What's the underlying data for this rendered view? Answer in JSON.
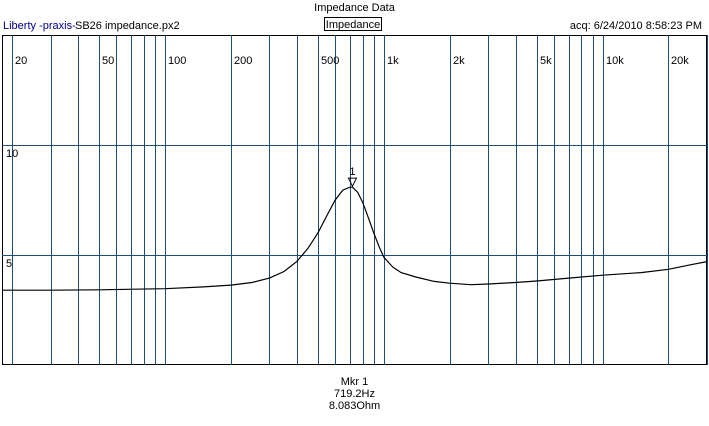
{
  "header": {
    "title": "Impedance Data",
    "brand": "Liberty -praxis-",
    "filename": "SB26 impedance.px2",
    "measurement_label": "Impedance",
    "acquired": "acq: 6/24/2010 8:58:23 PM"
  },
  "marker": {
    "number": "1",
    "title": "Mkr 1",
    "frequency": "719.2Hz",
    "value": "8.083Ohm"
  },
  "chart_data": {
    "type": "line",
    "title": "Impedance Data",
    "xlabel": "",
    "ylabel": "",
    "xscale": "log",
    "xlim": [
      18,
      30000
    ],
    "ylim": [
      0,
      15
    ],
    "grid": true,
    "xticks": [
      {
        "value": 20,
        "label": "20"
      },
      {
        "value": 50,
        "label": "50"
      },
      {
        "value": 100,
        "label": "100"
      },
      {
        "value": 200,
        "label": "200"
      },
      {
        "value": 500,
        "label": "500"
      },
      {
        "value": 1000,
        "label": "1k"
      },
      {
        "value": 2000,
        "label": "2k"
      },
      {
        "value": 5000,
        "label": "5k"
      },
      {
        "value": 10000,
        "label": "10k"
      },
      {
        "value": 20000,
        "label": "20k"
      }
    ],
    "yticks": [
      {
        "value": 5,
        "label": "5"
      },
      {
        "value": 10,
        "label": "10"
      }
    ],
    "series": [
      {
        "color": "#000000",
        "x": [
          18,
          30,
          50,
          100,
          150,
          200,
          250,
          300,
          350,
          400,
          450,
          500,
          550,
          600,
          650,
          700,
          719.2,
          760,
          800,
          850,
          900,
          950,
          1000,
          1100,
          1200,
          1400,
          1700,
          2000,
          2500,
          3000,
          4000,
          5000,
          7000,
          10000,
          15000,
          20000,
          25000,
          30000
        ],
        "y": [
          3.4,
          3.4,
          3.42,
          3.47,
          3.55,
          3.63,
          3.75,
          3.95,
          4.25,
          4.7,
          5.3,
          6.0,
          6.8,
          7.5,
          7.95,
          8.08,
          8.08,
          7.85,
          7.4,
          6.7,
          6.0,
          5.4,
          4.9,
          4.45,
          4.2,
          4.0,
          3.8,
          3.72,
          3.65,
          3.68,
          3.75,
          3.82,
          3.95,
          4.08,
          4.2,
          4.35,
          4.55,
          4.7
        ]
      }
    ]
  }
}
